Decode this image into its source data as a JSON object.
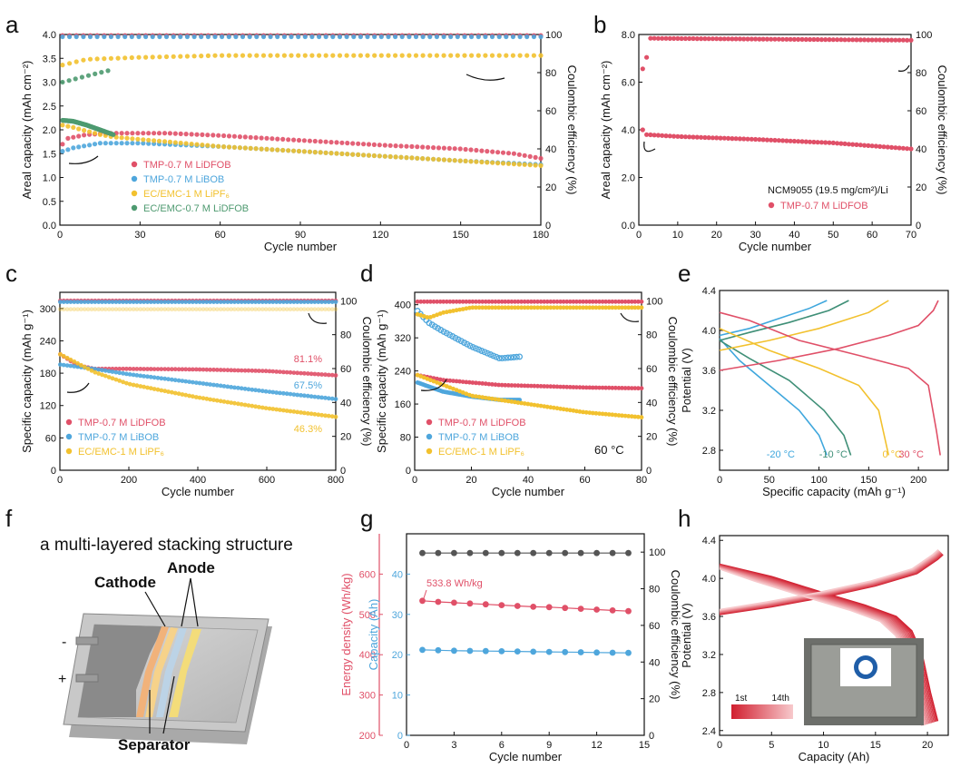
{
  "colors": {
    "red": "#e05068",
    "blue": "#4ea6dc",
    "yellow": "#f2c12e",
    "green": "#4e9a70",
    "gray": "#555555",
    "gradient_start": "#d11f2f",
    "gradient_end": "#f7c9cc",
    "temp_neg20": "#3fa7dd",
    "temp_neg10": "#3f8f77",
    "temp_0": "#f2c12e",
    "temp_30": "#e05068"
  },
  "chart_data": [
    {
      "panel": "a",
      "type": "scatter",
      "xlabel": "Cycle number",
      "ylabel_left": "Areal capacity (mAh cm⁻²)",
      "ylabel_right": "Coulombic efficiency (%)",
      "xlim": [
        0,
        180
      ],
      "ylim_left": [
        0,
        4.0
      ],
      "ylim_right": [
        0,
        100
      ],
      "xticks": [
        0,
        30,
        60,
        90,
        120,
        150,
        180
      ],
      "yticks_left": [
        0.0,
        0.5,
        1.0,
        1.5,
        2.0,
        2.5,
        3.0,
        3.5,
        4.0
      ],
      "yticks_right": [
        0,
        20,
        40,
        60,
        80,
        100
      ],
      "legend": [
        "TMP-0.7 M LiDFOB",
        "TMP-0.7 M LiBOB",
        "EC/EMC-1 M LiPF₆",
        "EC/EMC-0.7 M LiDFOB"
      ],
      "series": [
        {
          "name": "TMP-0.7 M LiDFOB",
          "axis": "left",
          "x": [
            1,
            3,
            10,
            20,
            40,
            60,
            90,
            120,
            150,
            170,
            180
          ],
          "y": [
            1.7,
            1.82,
            1.9,
            1.93,
            1.93,
            1.88,
            1.78,
            1.68,
            1.6,
            1.5,
            1.4
          ]
        },
        {
          "name": "TMP-0.7 M LiBOB",
          "axis": "left",
          "x": [
            1,
            5,
            15,
            30,
            60,
            90,
            120,
            150,
            180
          ],
          "y": [
            1.55,
            1.62,
            1.72,
            1.72,
            1.65,
            1.55,
            1.45,
            1.35,
            1.27
          ]
        },
        {
          "name": "EC/EMC-1 M LiPF₆",
          "axis": "left",
          "x": [
            1,
            5,
            15,
            20,
            40,
            60,
            90,
            120,
            150,
            180
          ],
          "y": [
            2.1,
            2.05,
            1.9,
            1.85,
            1.75,
            1.65,
            1.55,
            1.45,
            1.35,
            1.25
          ]
        },
        {
          "name": "EC/EMC-0.7 M LiDFOB",
          "axis": "left",
          "x": [
            1,
            5,
            10,
            15,
            20
          ],
          "y": [
            2.2,
            2.18,
            2.1,
            2.0,
            1.9
          ]
        },
        {
          "name": "TMP-0.7 M LiDFOB CE",
          "axis": "right",
          "x": [
            1,
            180
          ],
          "y": [
            99.5,
            99.5
          ]
        },
        {
          "name": "TMP-0.7 M LiBOB CE",
          "axis": "right",
          "x": [
            1,
            180
          ],
          "y": [
            98.8,
            98.8
          ]
        },
        {
          "name": "EC/EMC-1 M LiPF₆ CE",
          "axis": "right",
          "x": [
            1,
            10,
            30,
            60,
            180
          ],
          "y": [
            84,
            87,
            88,
            89,
            89
          ]
        },
        {
          "name": "EC/EMC-0.7 M LiDFOB CE",
          "axis": "right",
          "x": [
            1,
            15,
            18
          ],
          "y": [
            75,
            80,
            81
          ]
        }
      ]
    },
    {
      "panel": "b",
      "type": "scatter",
      "xlabel": "Cycle number",
      "ylabel_left": "Areal capacity (mAh cm⁻²)",
      "ylabel_right": "Coulombic efficiency (%)",
      "xlim": [
        0,
        70
      ],
      "ylim_left": [
        0,
        8.0
      ],
      "ylim_right": [
        0,
        100
      ],
      "xticks": [
        0,
        10,
        20,
        30,
        40,
        50,
        60,
        70
      ],
      "yticks_left": [
        0.0,
        2.0,
        4.0,
        6.0,
        8.0
      ],
      "yticks_right": [
        0,
        20,
        40,
        60,
        80,
        100
      ],
      "annotation": "NCM9055 (19.5 mg/cm²)/Li",
      "legend": [
        "TMP-0.7 M LiDFOB"
      ],
      "series": [
        {
          "name": "TMP-0.7 M LiDFOB",
          "axis": "left",
          "x": [
            1,
            2,
            10,
            30,
            50,
            70
          ],
          "y": [
            4.0,
            3.8,
            3.72,
            3.6,
            3.45,
            3.2
          ]
        },
        {
          "name": "TMP-0.7 M LiDFOB CE",
          "axis": "right",
          "x": [
            1,
            2,
            3,
            70
          ],
          "y": [
            82,
            88,
            98,
            97
          ]
        }
      ]
    },
    {
      "panel": "c",
      "type": "scatter",
      "xlabel": "Cycle number",
      "ylabel_left": "Specific capacity (mAh g⁻¹)",
      "ylabel_right": "Coulombic efficiency (%)",
      "xlim": [
        0,
        800
      ],
      "ylim_left": [
        0,
        330
      ],
      "ylim_right": [
        0,
        105
      ],
      "xticks": [
        0,
        200,
        400,
        600,
        800
      ],
      "yticks_left": [
        0,
        60,
        120,
        180,
        240,
        300
      ],
      "yticks_right": [
        0,
        20,
        40,
        60,
        80,
        100
      ],
      "annotations": [
        "81.1%",
        "67.5%",
        "46.3%"
      ],
      "legend": [
        "TMP-0.7 M LiDFOB",
        "TMP-0.7 M LiBOB",
        "EC/EMC-1 M LiPF₆"
      ],
      "series": [
        {
          "name": "TMP-0.7 M LiDFOB",
          "axis": "left",
          "x": [
            1,
            50,
            100,
            200,
            400,
            600,
            800
          ],
          "y": [
            215,
            195,
            188,
            188,
            187,
            184,
            176
          ]
        },
        {
          "name": "TMP-0.7 M LiBOB",
          "axis": "left",
          "x": [
            1,
            100,
            200,
            400,
            600,
            800
          ],
          "y": [
            196,
            188,
            178,
            162,
            146,
            132
          ]
        },
        {
          "name": "EC/EMC-1 M LiPF₆",
          "axis": "left",
          "x": [
            1,
            100,
            200,
            400,
            600,
            800
          ],
          "y": [
            215,
            182,
            160,
            135,
            115,
            99
          ]
        },
        {
          "name": "TMP-0.7 M LiDFOB CE",
          "axis": "right",
          "x": [
            1,
            800
          ],
          "y": [
            100,
            100
          ]
        },
        {
          "name": "TMP-0.7 M LiBOB CE",
          "axis": "right",
          "x": [
            1,
            800
          ],
          "y": [
            99.3,
            99.3
          ]
        },
        {
          "name": "EC/EMC-1 M LiPF₆ CE",
          "axis": "right",
          "x": [
            1,
            800
          ],
          "y": [
            95,
            95
          ]
        }
      ]
    },
    {
      "panel": "d",
      "type": "scatter",
      "xlabel": "Cycle number",
      "ylabel_left": "Specific capacity (mAh g⁻¹)",
      "ylabel_right": "Coulombic efficiency (%)",
      "xlim": [
        0,
        80
      ],
      "ylim_left": [
        0,
        430
      ],
      "ylim_right": [
        0,
        105
      ],
      "xticks": [
        0,
        20,
        40,
        60,
        80
      ],
      "yticks_left": [
        0,
        80,
        160,
        240,
        320,
        400
      ],
      "yticks_right": [
        0,
        20,
        40,
        60,
        80,
        100
      ],
      "annotation": "60 °C",
      "legend": [
        "TMP-0.7 M LiDFOB",
        "TMP-0.7 M LiBOB",
        "EC/EMC-1 M LiPF₆"
      ],
      "series": [
        {
          "name": "TMP-0.7 M LiDFOB",
          "axis": "left",
          "x": [
            1,
            10,
            30,
            60,
            80
          ],
          "y": [
            230,
            218,
            206,
            200,
            198
          ]
        },
        {
          "name": "TMP-0.7 M LiBOB",
          "axis": "left",
          "x": [
            1,
            10,
            20,
            30,
            37
          ],
          "y": [
            212,
            190,
            178,
            170,
            170
          ]
        },
        {
          "name": "EC/EMC-1 M LiPF₆",
          "axis": "left",
          "x": [
            1,
            20,
            40,
            60,
            80
          ],
          "y": [
            230,
            180,
            160,
            140,
            128
          ]
        },
        {
          "name": "TMP-0.7 M LiDFOB CE",
          "axis": "right",
          "x": [
            1,
            80
          ],
          "y": [
            99.5,
            99.5
          ]
        },
        {
          "name": "TMP-0.7 M LiBOB CE",
          "axis": "right",
          "x": [
            1,
            5,
            10,
            20,
            30,
            37
          ],
          "y": [
            94,
            87,
            82,
            73,
            66,
            67
          ]
        },
        {
          "name": "EC/EMC-1 M LiPF₆ CE",
          "axis": "right",
          "x": [
            1,
            5,
            10,
            20,
            80
          ],
          "y": [
            92,
            90,
            93,
            96,
            96
          ]
        }
      ]
    },
    {
      "panel": "e",
      "type": "line",
      "xlabel": "Specific capacity (mAh g⁻¹)",
      "ylabel": "Potential (V)",
      "xlim": [
        0,
        230
      ],
      "ylim": [
        2.6,
        4.4
      ],
      "xticks": [
        0,
        50,
        100,
        150,
        200
      ],
      "yticks": [
        2.8,
        3.2,
        3.6,
        4.0,
        4.4
      ],
      "labels": [
        "-20 °C",
        "-10 °C",
        "0 °C",
        "30 °C"
      ],
      "series": [
        {
          "name": "-20 °C",
          "charge_x": [
            0,
            30,
            60,
            90,
            108
          ],
          "charge_y": [
            3.95,
            4.02,
            4.12,
            4.22,
            4.3
          ],
          "discharge_x": [
            0,
            20,
            50,
            80,
            100,
            108
          ],
          "discharge_y": [
            3.92,
            3.7,
            3.45,
            3.2,
            2.95,
            2.75
          ]
        },
        {
          "name": "-10 °C",
          "charge_x": [
            0,
            30,
            70,
            110,
            130
          ],
          "charge_y": [
            3.9,
            3.98,
            4.08,
            4.2,
            4.3
          ],
          "discharge_x": [
            0,
            30,
            70,
            105,
            125,
            132
          ],
          "discharge_y": [
            3.9,
            3.72,
            3.5,
            3.2,
            2.95,
            2.75
          ]
        },
        {
          "name": "0 °C",
          "charge_x": [
            0,
            50,
            100,
            150,
            170
          ],
          "charge_y": [
            3.8,
            3.9,
            4.02,
            4.18,
            4.3
          ],
          "discharge_x": [
            0,
            50,
            100,
            140,
            160,
            170
          ],
          "discharge_y": [
            4.02,
            3.8,
            3.62,
            3.45,
            3.2,
            2.75
          ]
        },
        {
          "name": "30 °C",
          "charge_x": [
            0,
            60,
            120,
            170,
            200,
            215,
            220
          ],
          "charge_y": [
            3.6,
            3.7,
            3.82,
            3.95,
            4.05,
            4.2,
            4.3
          ],
          "discharge_x": [
            0,
            30,
            80,
            140,
            190,
            210,
            218,
            222
          ],
          "discharge_y": [
            4.18,
            4.1,
            3.9,
            3.75,
            3.62,
            3.45,
            3.0,
            2.75
          ]
        }
      ]
    },
    {
      "panel": "g",
      "type": "scatter",
      "xlabel": "Cycle number",
      "ylabel_energy": "Energy density (Wh/kg)",
      "ylabel_capacity": "Capacity (Ah)",
      "ylabel_right": "Coulombic efficiency (%)",
      "xlim": [
        0,
        15
      ],
      "ylim_energy": [
        200,
        700
      ],
      "ylim_capacity": [
        0,
        50
      ],
      "ylim_right": [
        0,
        110
      ],
      "xticks": [
        0,
        3,
        6,
        9,
        12,
        15
      ],
      "yticks_energy": [
        200,
        300,
        400,
        500,
        600
      ],
      "yticks_capacity": [
        0,
        10,
        20,
        30,
        40
      ],
      "yticks_right": [
        0,
        20,
        40,
        60,
        80,
        100
      ],
      "annotation": "533.8 Wh/kg",
      "series": [
        {
          "name": "Coulombic efficiency",
          "axis": "right",
          "x": [
            1,
            2,
            3,
            4,
            5,
            6,
            7,
            8,
            9,
            10,
            11,
            12,
            13,
            14
          ],
          "y": [
            99.5,
            99.5,
            99.5,
            99.5,
            99.5,
            99.5,
            99.5,
            99.5,
            99.5,
            99.5,
            99.5,
            99.5,
            99.5,
            99.5
          ]
        },
        {
          "name": "Energy density",
          "axis": "energy",
          "x": [
            1,
            2,
            3,
            4,
            5,
            6,
            7,
            8,
            9,
            10,
            11,
            12,
            13,
            14
          ],
          "y": [
            533.8,
            531,
            529,
            527,
            525,
            523,
            521,
            519,
            518,
            516,
            514,
            512,
            510,
            508
          ]
        },
        {
          "name": "Capacity",
          "axis": "capacity",
          "x": [
            1,
            2,
            3,
            4,
            5,
            6,
            7,
            8,
            9,
            10,
            11,
            12,
            13,
            14
          ],
          "y": [
            21.2,
            21.1,
            21.0,
            20.95,
            20.9,
            20.85,
            20.8,
            20.75,
            20.7,
            20.65,
            20.6,
            20.55,
            20.5,
            20.45
          ]
        }
      ]
    },
    {
      "panel": "h",
      "type": "line",
      "xlabel": "Capacity (Ah)",
      "ylabel": "Potential (V)",
      "xlim": [
        0,
        22
      ],
      "ylim": [
        2.35,
        4.45
      ],
      "xticks": [
        0,
        5,
        10,
        15,
        20
      ],
      "yticks": [
        2.4,
        2.8,
        3.2,
        3.6,
        4.0,
        4.4
      ],
      "colorbar": {
        "start_label": "1st",
        "end_label": "14th"
      },
      "charge": {
        "x": [
          0,
          5,
          10,
          15,
          19,
          21,
          21.5
        ],
        "y": [
          3.62,
          3.7,
          3.8,
          3.92,
          4.05,
          4.2,
          4.25
        ]
      },
      "discharge": {
        "x": [
          0,
          5,
          10,
          14,
          17,
          18.5,
          19.5,
          20.3,
          21
        ],
        "y": [
          4.15,
          4.02,
          3.85,
          3.72,
          3.6,
          3.45,
          3.2,
          2.8,
          2.5
        ]
      }
    }
  ],
  "labels": {
    "panel_a": "a",
    "panel_b": "b",
    "panel_c": "c",
    "panel_d": "d",
    "panel_e": "e",
    "panel_f": "f",
    "panel_g": "g",
    "panel_h": "h",
    "f_title": "a multi-layered stacking structure",
    "f_cathode": "Cathode",
    "f_anode": "Anode",
    "f_separator": "Separator",
    "f_minus": "-",
    "f_plus": "+"
  }
}
